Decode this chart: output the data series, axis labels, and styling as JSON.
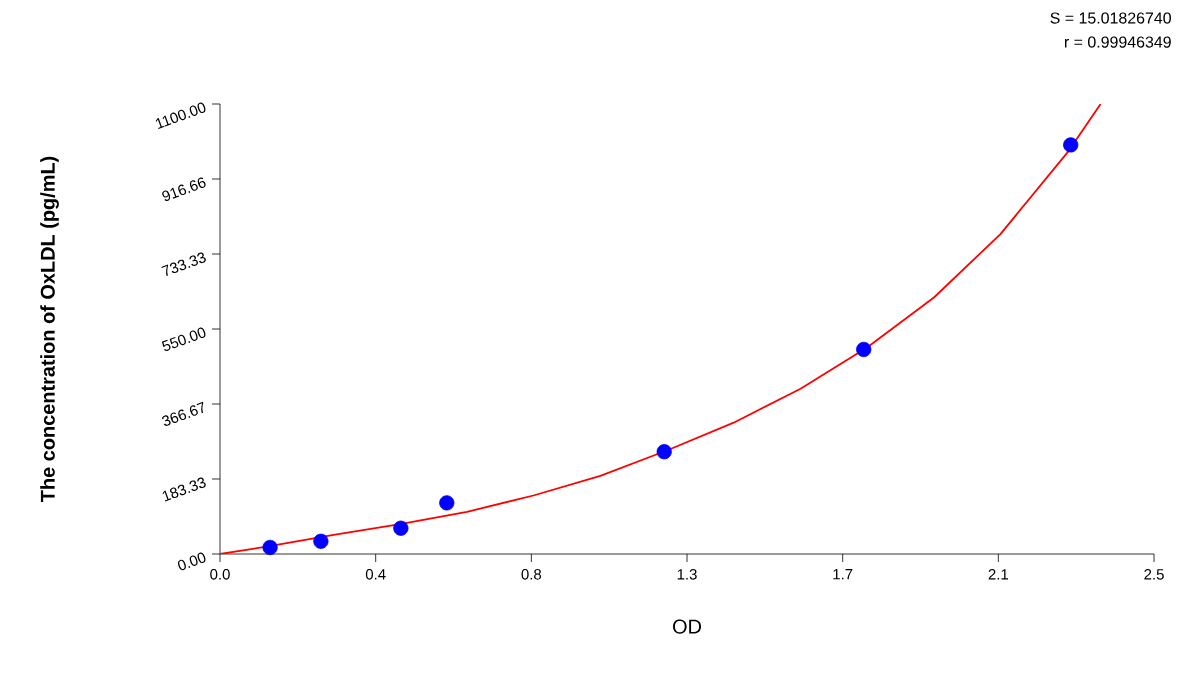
{
  "chart_data": {
    "type": "scatter",
    "xlabel": "OD",
    "ylabel": "The concentration of OxLDL (pg/mL)",
    "annotations": [
      "S = 15.01826740",
      "r = 0.99946349"
    ],
    "xlim": [
      0,
      2.5
    ],
    "ylim": [
      0,
      1100
    ],
    "xticks": [
      {
        "value": 0,
        "label": "0.0"
      },
      {
        "value": 0.4167,
        "label": "0.4"
      },
      {
        "value": 0.8333,
        "label": "0.8"
      },
      {
        "value": 1.25,
        "label": "1.3"
      },
      {
        "value": 1.6667,
        "label": "1.7"
      },
      {
        "value": 2.0833,
        "label": "2.1"
      },
      {
        "value": 2.5,
        "label": "2.5"
      }
    ],
    "yticks": [
      {
        "value": 0,
        "label": "0.00"
      },
      {
        "value": 183.33,
        "label": "183.33"
      },
      {
        "value": 366.67,
        "label": "366.67"
      },
      {
        "value": 550,
        "label": "550.00"
      },
      {
        "value": 733.33,
        "label": "733.33"
      },
      {
        "value": 916.66,
        "label": "916.66"
      },
      {
        "value": 1100,
        "label": "1100.00"
      }
    ],
    "grid": false,
    "series": [
      {
        "color": "#0000ff",
        "marker": "circle",
        "x": [
          0.134,
          0.27,
          0.484,
          0.607,
          1.189,
          1.723,
          2.277
        ],
        "values": [
          16,
          31,
          63,
          125,
          250,
          500,
          1000
        ]
      },
      {
        "type": "line",
        "color": "#ff0000",
        "marker": "none",
        "line_style": "solid",
        "x": [
          0,
          0.125,
          0.304,
          0.482,
          0.661,
          0.839,
          1.018,
          1.196,
          1.375,
          1.554,
          1.732,
          1.911,
          2.089,
          2.268,
          2.357
        ],
        "values": [
          0,
          18,
          47,
          73,
          103,
          143,
          191,
          253,
          321,
          404,
          505,
          627,
          782,
          981,
          1100
        ]
      }
    ]
  }
}
